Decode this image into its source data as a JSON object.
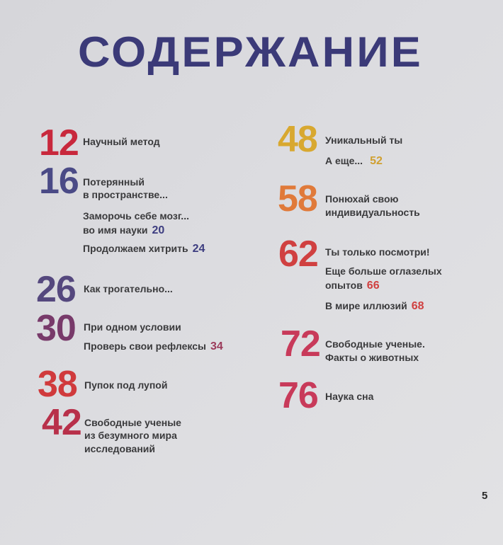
{
  "title": "СОДЕРЖАНИЕ",
  "page_number": "5",
  "colors": {
    "title": "#3b3a78",
    "text": "#3a3a3c"
  },
  "left": [
    {
      "num": "12",
      "color": "#c8283c",
      "lines": [
        "Научный метод"
      ]
    },
    {
      "num": "16",
      "color": "#4a4a86",
      "lines": [
        "Потерянный",
        "в пространстве..."
      ],
      "subs": [
        {
          "lines": [
            "Заморочь себе мозг...",
            "во имя науки"
          ],
          "num": "20",
          "color": "#3d3d80"
        },
        {
          "lines": [
            "Продолжаем хитрить"
          ],
          "num": "24",
          "color": "#3d3d80"
        }
      ]
    },
    {
      "num": "26",
      "color": "#55487e",
      "lines": [
        "Как трогательно..."
      ]
    },
    {
      "num": "30",
      "color": "#783a6a",
      "lines": [
        "При одном условии"
      ],
      "subs": [
        {
          "lines": [
            "Проверь свои рефлексы"
          ],
          "num": "34",
          "color": "#9b3a5a"
        }
      ]
    },
    {
      "num": "38",
      "color": "#d03a3c",
      "lines": [
        "Пупок под лупой"
      ]
    },
    {
      "num": "42",
      "color": "#b8304a",
      "lines": [
        "Свободные ученые",
        "из безумного мира",
        "исследований"
      ]
    }
  ],
  "right": [
    {
      "num": "48",
      "color": "#d8a830",
      "lines": [
        "Уникальный ты"
      ],
      "subs": [
        {
          "lines": [
            "А еще..."
          ],
          "num": "52",
          "color": "#d0a030"
        }
      ]
    },
    {
      "num": "58",
      "color": "#e07a3a",
      "lines": [
        "Понюхай свою",
        "индивидуальность"
      ]
    },
    {
      "num": "62",
      "color": "#d04040",
      "lines": [
        "Ты только посмотри!"
      ],
      "subs": [
        {
          "lines": [
            "Еще больше оглазелых",
            "опытов"
          ],
          "num": "66",
          "color": "#d04040"
        },
        {
          "lines": [
            "В мире иллюзий"
          ],
          "num": "68",
          "color": "#d04040"
        }
      ]
    },
    {
      "num": "72",
      "color": "#c83a5a",
      "lines": [
        "Свободные ученые.",
        "Факты о животных"
      ]
    },
    {
      "num": "76",
      "color": "#c83a5a",
      "lines": [
        "Наука сна"
      ]
    }
  ]
}
